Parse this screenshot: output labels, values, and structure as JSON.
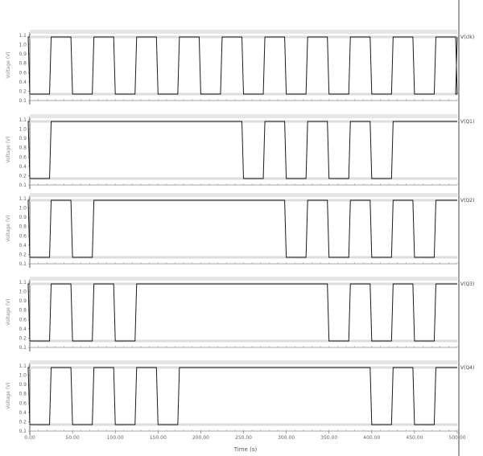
{
  "chart_data": {
    "type": "line",
    "xlabel": "Time (s)",
    "x_ticks": [
      "0.00",
      "50.00",
      "100.00",
      "150.00",
      "200.00",
      "250.00",
      "300.00",
      "350.00",
      "400.00",
      "450.00",
      "500.00"
    ],
    "xlim": [
      0,
      500
    ],
    "panels": [
      {
        "signal": "V(clk)",
        "ylabel": "Voltage (V)",
        "ylim": [
          0,
          1.1
        ],
        "y_ticks": [
          "1.1",
          "1.0",
          "0.9",
          "0.8",
          "0.6",
          "0.4",
          "0.2",
          "0.1"
        ],
        "pulses": [
          [
            0,
            25
          ],
          [
            50,
            75
          ],
          [
            100,
            125
          ],
          [
            150,
            175
          ],
          [
            200,
            225
          ],
          [
            250,
            275
          ],
          [
            300,
            325
          ],
          [
            350,
            375
          ],
          [
            400,
            425
          ],
          [
            450,
            475
          ],
          [
            500,
            501
          ]
        ]
      },
      {
        "signal": "V(Q1)",
        "ylabel": "Voltage (V)",
        "ylim": [
          0,
          1.1
        ],
        "y_ticks": [
          "1.1",
          "1.0",
          "0.9",
          "0.8",
          "0.6",
          "0.4",
          "0.2",
          "0.1"
        ],
        "pulses": [
          [
            0,
            25
          ],
          [
            250,
            275
          ],
          [
            300,
            325
          ],
          [
            350,
            375
          ],
          [
            400,
            425
          ]
        ]
      },
      {
        "signal": "V(Q2)",
        "ylabel": "Voltage (V)",
        "ylim": [
          0,
          1.1
        ],
        "y_ticks": [
          "1.1",
          "1.0",
          "0.9",
          "0.8",
          "0.6",
          "0.4",
          "0.2",
          "0.1"
        ],
        "pulses": [
          [
            0,
            25
          ],
          [
            50,
            75
          ],
          [
            300,
            325
          ],
          [
            350,
            375
          ],
          [
            400,
            425
          ],
          [
            450,
            475
          ]
        ]
      },
      {
        "signal": "V(Q3)",
        "ylabel": "Voltage (V)",
        "ylim": [
          0,
          1.1
        ],
        "y_ticks": [
          "1.1",
          "1.0",
          "0.9",
          "0.8",
          "0.6",
          "0.4",
          "0.2",
          "0.1"
        ],
        "pulses": [
          [
            0,
            25
          ],
          [
            50,
            75
          ],
          [
            100,
            125
          ],
          [
            350,
            375
          ],
          [
            400,
            425
          ],
          [
            450,
            475
          ]
        ]
      },
      {
        "signal": "V(Q4)",
        "ylabel": "Voltage (V)",
        "ylim": [
          0,
          1.1
        ],
        "y_ticks": [
          "1.1",
          "1.0",
          "0.9",
          "0.8",
          "0.6",
          "0.4",
          "0.2",
          "0.1"
        ],
        "pulses": [
          [
            0,
            25
          ],
          [
            50,
            75
          ],
          [
            100,
            125
          ],
          [
            150,
            175
          ],
          [
            400,
            425
          ],
          [
            450,
            475
          ]
        ]
      }
    ]
  }
}
